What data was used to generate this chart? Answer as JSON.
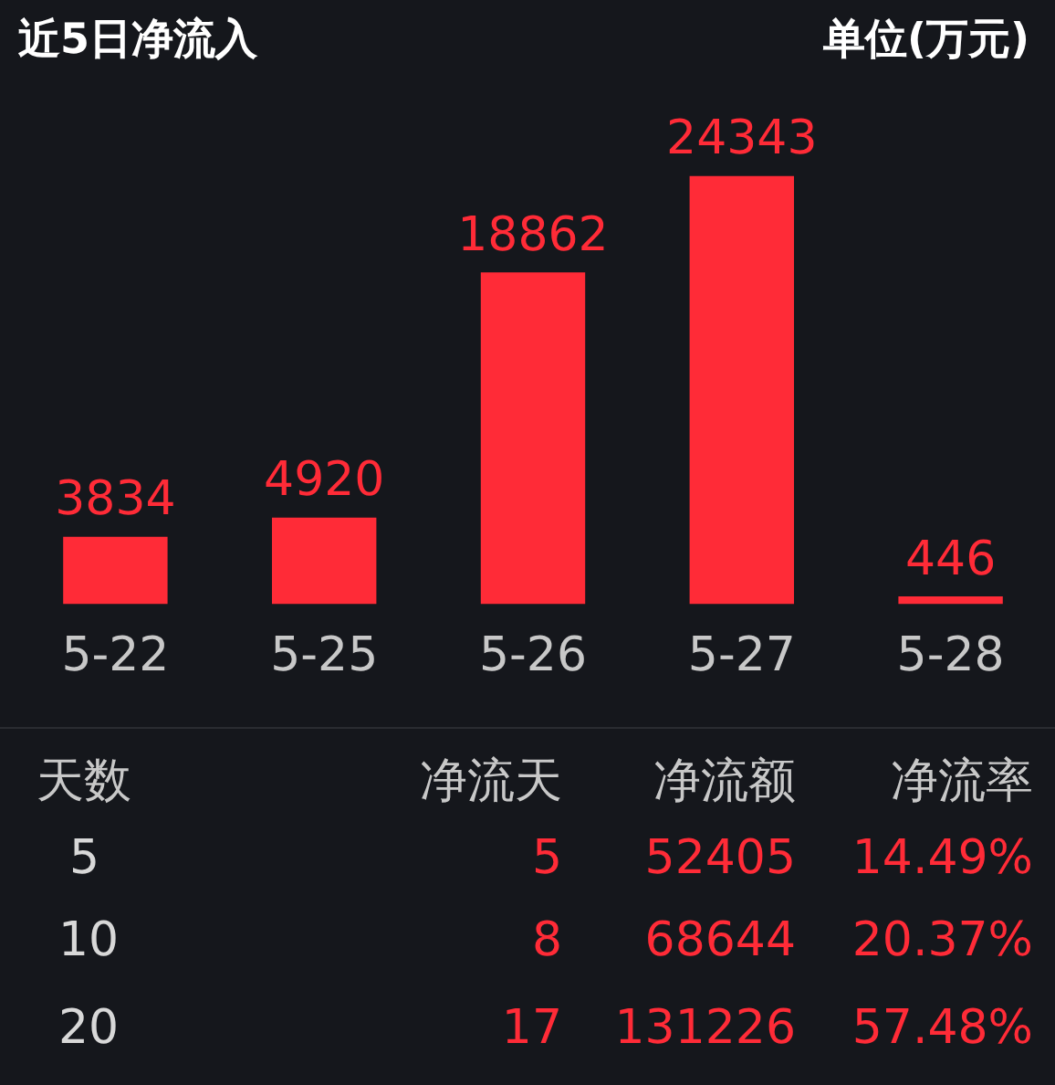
{
  "chart_data": {
    "type": "bar",
    "title": "近5日净流入",
    "subtitle": "单位(万元)",
    "categories": [
      "5-22",
      "5-25",
      "5-26",
      "5-27",
      "5-28"
    ],
    "values": [
      3834,
      4920,
      18862,
      24343,
      446
    ],
    "color": "#ff2b37",
    "data_labels": true,
    "tick_labels": "x",
    "grid": false,
    "legend": false,
    "annotations": [
      "天数",
      "净流天",
      "净流额",
      "净流率",
      "5",
      "5",
      "52405",
      "14.49%",
      "10",
      "8",
      "68644",
      "20.37%",
      "20",
      "17",
      "131226",
      "57.48%"
    ]
  }
}
